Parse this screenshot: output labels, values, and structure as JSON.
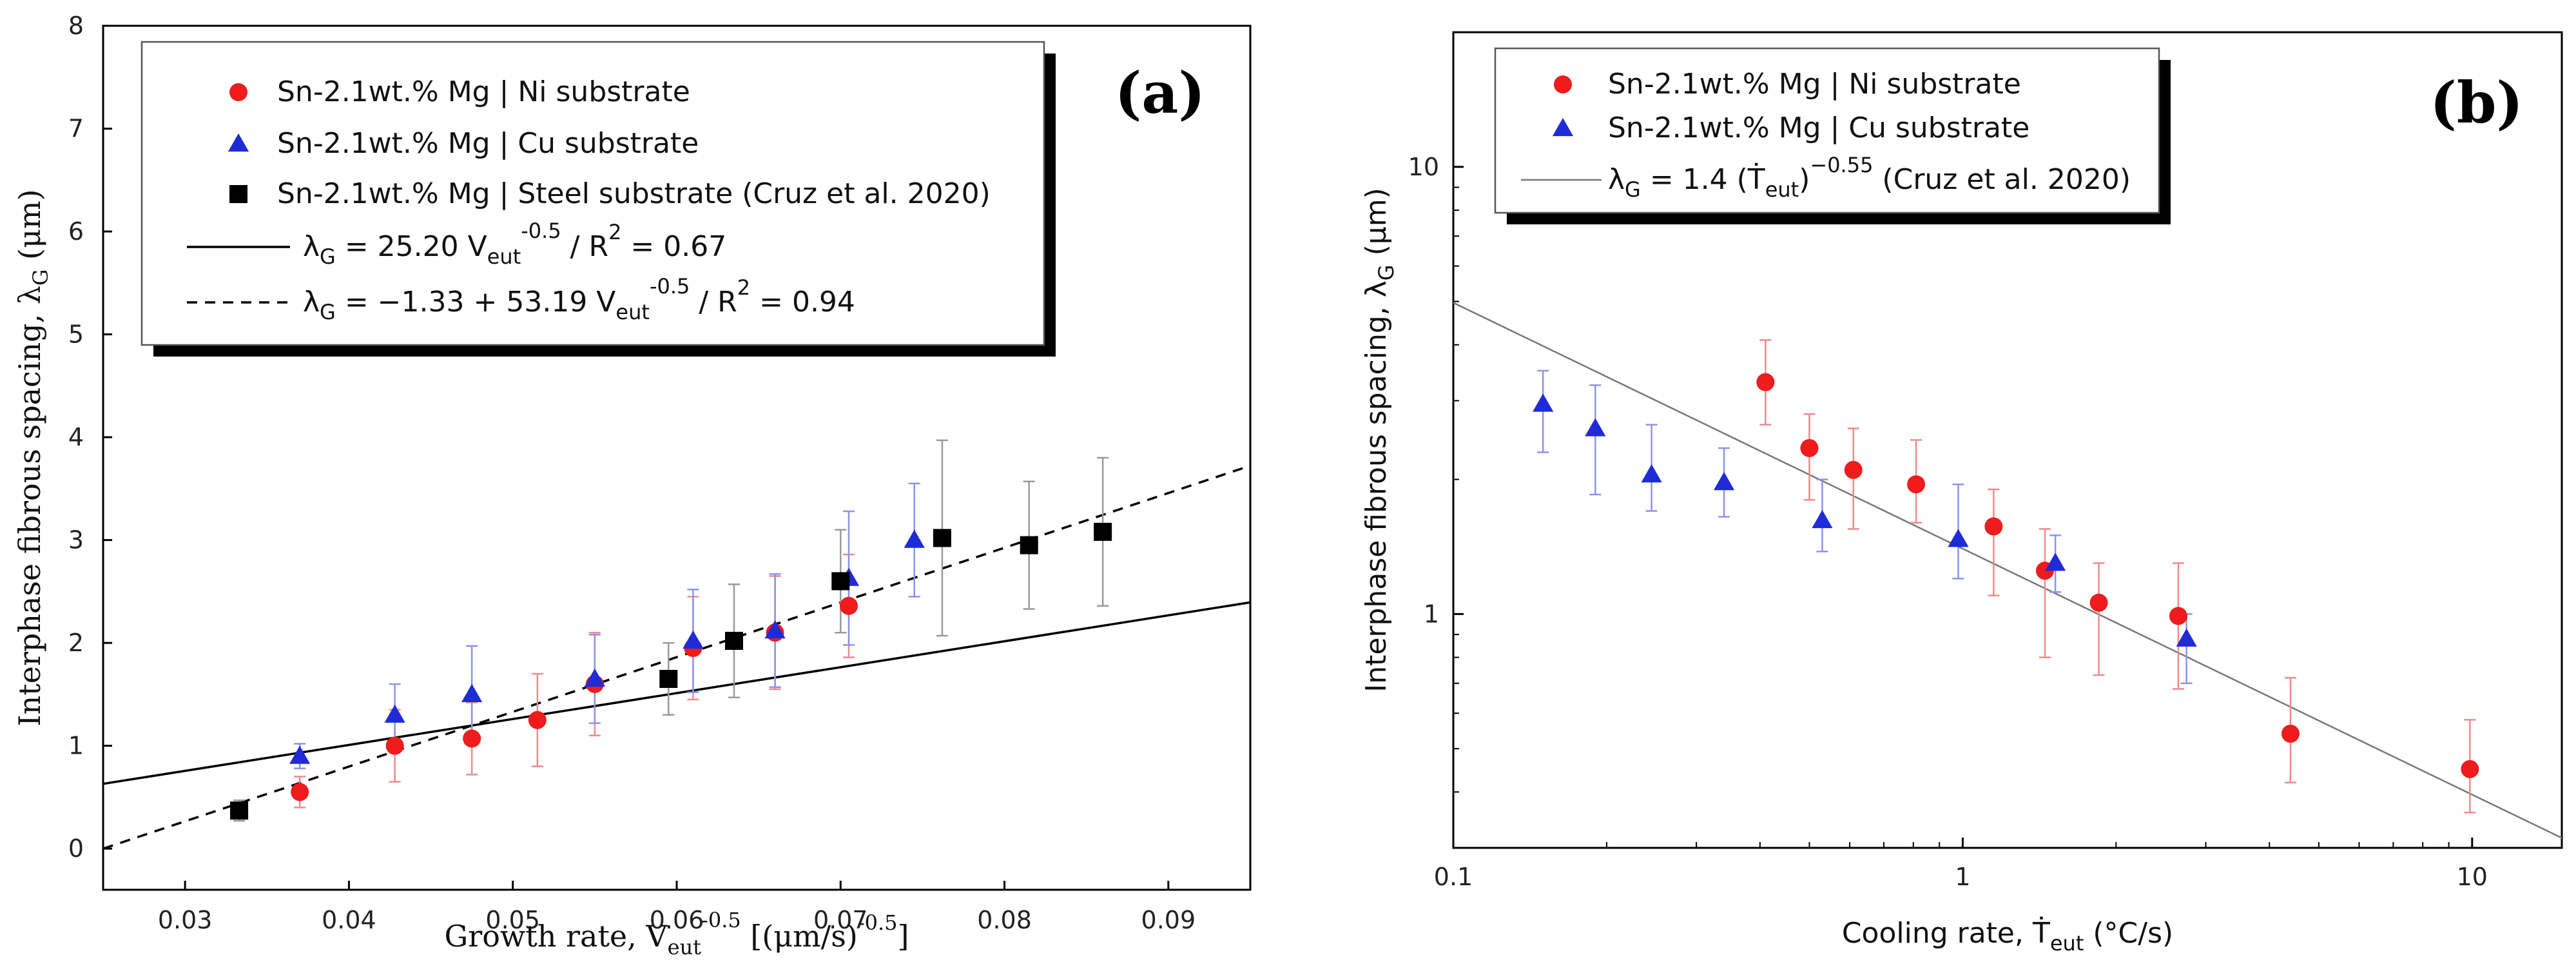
{
  "colors": {
    "ni": "#ee1c1c",
    "cu": "#1f2bd6",
    "steel": "#000000",
    "ni_err": "#f08a8a",
    "cu_err": "#8b93ee",
    "steel_err": "#999999",
    "fit_b": "#777777"
  },
  "chart_data": [
    {
      "panel": "(a)",
      "type": "scatter",
      "title": "",
      "xlabel": "Growth rate, V",
      "xlabel_sub": "eut",
      "xlabel_sup": "-0.5",
      "xlabel_tail": " [(μm/s)",
      "xlabel_tail_sup": "-0.5",
      "xlabel_end": "]",
      "ylabel": "Interphase fibrous spacing, λ",
      "ylabel_sub": "G",
      "ylabel_tail": " (μm)",
      "xlim": [
        0.025,
        0.095
      ],
      "ylim": [
        -0.4,
        8
      ],
      "xticks": [
        0.03,
        0.04,
        0.05,
        0.06,
        0.07,
        0.08,
        0.09
      ],
      "xtick_labels": [
        "0.03",
        "0.04",
        "0.05",
        "0.06",
        "0.07",
        "0.08",
        "0.09"
      ],
      "yticks": [
        0,
        1,
        2,
        3,
        4,
        5,
        6,
        7,
        8
      ],
      "ytick_labels": [
        "0",
        "1",
        "2",
        "3",
        "4",
        "5",
        "6",
        "7",
        "8"
      ],
      "series": [
        {
          "name": "Sn-2.1wt.% Mg | Ni substrate",
          "marker": "circle",
          "x": [
            0.037,
            0.0428,
            0.0475,
            0.0515,
            0.055,
            0.061,
            0.066,
            0.0705
          ],
          "y": [
            0.55,
            1.0,
            1.07,
            1.25,
            1.6,
            1.95,
            2.1,
            2.36
          ],
          "err": [
            0.15,
            0.35,
            0.35,
            0.45,
            0.5,
            0.5,
            0.55,
            0.5
          ]
        },
        {
          "name": "Sn-2.1wt.% Mg | Cu substrate",
          "marker": "triangle",
          "x": [
            0.037,
            0.0428,
            0.0475,
            0.055,
            0.061,
            0.066,
            0.0705,
            0.0745
          ],
          "y": [
            0.9,
            1.3,
            1.5,
            1.65,
            2.02,
            2.12,
            2.63,
            3.0
          ],
          "err": [
            0.12,
            0.3,
            0.47,
            0.43,
            0.5,
            0.55,
            0.65,
            0.55
          ]
        },
        {
          "name": "Sn-2.1wt.% Mg | Steel substrate (Cruz et al. 2020)",
          "marker": "square",
          "x": [
            0.0333,
            0.0595,
            0.0635,
            0.07,
            0.0762,
            0.0815,
            0.086
          ],
          "y": [
            0.37,
            1.65,
            2.02,
            2.6,
            3.02,
            2.95,
            3.08
          ],
          "err": [
            0.1,
            0.35,
            0.55,
            0.5,
            0.95,
            0.62,
            0.72
          ]
        }
      ],
      "fits": [
        {
          "name": "λG = 25.20 Veut^-0.5 / R² = 0.67",
          "style": "solid",
          "intercept": 0,
          "slope": 25.2
        },
        {
          "name": "λG = −1.33 + 53.19 Veut^-0.5 / R² = 0.94",
          "style": "dashed",
          "intercept": -1.33,
          "slope": 53.19
        }
      ],
      "legend": {
        "placement": "top-left",
        "entries": [
          {
            "kind": "marker",
            "series": 0,
            "pre": "Sn-2.1wt.% Mg | Ni substrate"
          },
          {
            "kind": "marker",
            "series": 1,
            "pre": "Sn-2.1wt.% Mg | Cu substrate"
          },
          {
            "kind": "marker",
            "series": 2,
            "pre": "Sn-2.1wt.% Mg | Steel substrate (Cruz et al. 2020)"
          },
          {
            "kind": "line",
            "style": "solid",
            "pre": "λ",
            "sub": "G",
            "mid": " = 25.20 V",
            "sub2": "eut",
            "sup": "-0.5",
            "post": "  / R",
            "sup2": "2",
            "end": " = 0.67"
          },
          {
            "kind": "line",
            "style": "dashed",
            "pre": "λ",
            "sub": "G",
            "mid": " = −1.33 + 53.19 V",
            "sub2": "eut",
            "sup": "-0.5",
            "post": " / R",
            "sup2": "2",
            "end": " = 0.94"
          }
        ]
      }
    },
    {
      "panel": "(b)",
      "type": "scatter",
      "title": "",
      "xscale": "log",
      "yscale": "log",
      "xlabel": "Cooling rate, Ṫ",
      "xlabel_sub": "eut",
      "xlabel_tail": " (°C/s)",
      "ylabel": "Interphase fibrous spacing, λ",
      "ylabel_sub": "G",
      "ylabel_tail": " (μm)",
      "xlim": [
        0.1,
        15
      ],
      "ylim": [
        0.3,
        20
      ],
      "xticks": [
        0.1,
        1,
        10
      ],
      "xtick_labels": [
        "0.1",
        "1",
        "10"
      ],
      "yticks": [
        1,
        10
      ],
      "ytick_labels": [
        "1",
        "10"
      ],
      "series": [
        {
          "name": "Sn-2.1wt.% Mg | Ni substrate",
          "marker": "circle",
          "x": [
            0.41,
            0.5,
            0.61,
            0.81,
            1.15,
            1.45,
            1.85,
            2.65,
            4.4,
            9.9
          ],
          "y": [
            3.3,
            2.35,
            2.1,
            1.95,
            1.57,
            1.25,
            1.06,
            0.99,
            0.54,
            0.45
          ],
          "lo": [
            2.65,
            1.8,
            1.55,
            1.6,
            1.1,
            0.8,
            0.73,
            0.68,
            0.42,
            0.36
          ],
          "hi": [
            4.1,
            2.8,
            2.6,
            2.45,
            1.9,
            1.55,
            1.3,
            1.3,
            0.72,
            0.58
          ]
        },
        {
          "name": "Sn-2.1wt.% Mg | Cu substrate",
          "marker": "triangle",
          "x": [
            0.15,
            0.19,
            0.245,
            0.34,
            0.53,
            0.98,
            1.52,
            2.75
          ],
          "y": [
            2.95,
            2.6,
            2.05,
            1.97,
            1.62,
            1.47,
            1.3,
            0.88
          ],
          "lo": [
            2.3,
            1.85,
            1.7,
            1.65,
            1.38,
            1.2,
            1.12,
            0.7
          ],
          "hi": [
            3.5,
            3.25,
            2.65,
            2.35,
            2.0,
            1.95,
            1.5,
            1.0
          ]
        }
      ],
      "fits": [
        {
          "name": "λG = 1.4 (Ṫeut)^-0.55 (Cruz et al. 2020)",
          "style": "solid",
          "coef": 1.4,
          "exponent": -0.55
        }
      ],
      "legend": {
        "placement": "top-left",
        "entries": [
          {
            "kind": "marker",
            "series": 0,
            "pre": "Sn-2.1wt.% Mg | Ni substrate"
          },
          {
            "kind": "marker",
            "series": 1,
            "pre": "Sn-2.1wt.% Mg | Cu substrate"
          },
          {
            "kind": "line",
            "style": "thin",
            "pre": "λ",
            "sub": "G",
            "mid": " = 1.4 (Ṫ",
            "sub2": "eut",
            "sup": ")",
            "post": "",
            "sup2": "−0.55",
            "end": "  (Cruz et al. 2020)"
          }
        ]
      }
    }
  ]
}
